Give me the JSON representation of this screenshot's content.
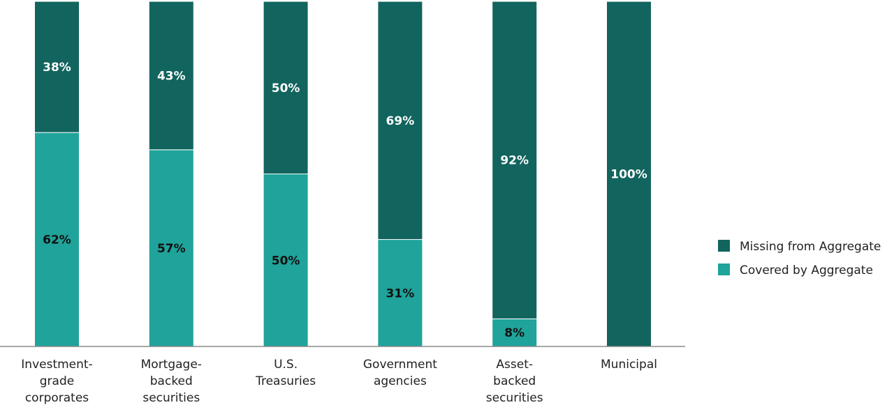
{
  "chart_data": {
    "type": "bar",
    "stacked": true,
    "normalized": true,
    "categories": [
      [
        "Investment-",
        "grade",
        "corporates"
      ],
      [
        "Mortgage-",
        "backed",
        "securities"
      ],
      [
        "U.S.",
        "Treasuries"
      ],
      [
        "Government",
        "agencies"
      ],
      [
        "Asset-",
        "backed",
        "securities"
      ],
      [
        "Municipal"
      ]
    ],
    "series": [
      {
        "name": "Covered by Aggregate",
        "color": "#1fa39a",
        "label_color": "#111111",
        "values": [
          62,
          57,
          50,
          31,
          8,
          0
        ],
        "labels": [
          "62%",
          "57%",
          "50%",
          "31%",
          "8%",
          ""
        ]
      },
      {
        "name": "Missing from Aggregate",
        "color": "#12645e",
        "label_color": "#ffffff",
        "values": [
          38,
          43,
          50,
          69,
          92,
          100
        ],
        "labels": [
          "38%",
          "43%",
          "50%",
          "69%",
          "92%",
          "100%"
        ]
      }
    ],
    "ylim": [
      0,
      100
    ],
    "grid": false,
    "legend": {
      "position": "right",
      "order": [
        "Missing from Aggregate",
        "Covered by Aggregate"
      ]
    }
  }
}
